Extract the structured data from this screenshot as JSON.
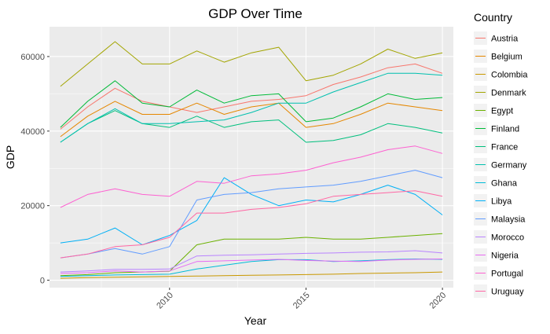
{
  "chart_data": {
    "type": "line",
    "title": "GDP Over Time",
    "xlabel": "Year",
    "ylabel": "GDP",
    "xlim": [
      2005.6,
      2020.4
    ],
    "ylim": [
      -2000,
      68000
    ],
    "x_ticks": [
      2010,
      2015,
      2020
    ],
    "x_tick_labels": [
      "2010",
      "2015",
      "2020"
    ],
    "y_ticks": [
      0,
      20000,
      40000,
      60000
    ],
    "y_tick_labels": [
      "0",
      "20000",
      "40000",
      "60000"
    ],
    "grid": true,
    "legend_title": "Country",
    "legend_position": "right",
    "x": [
      2006,
      2007,
      2008,
      2009,
      2010,
      2011,
      2012,
      2013,
      2014,
      2015,
      2016,
      2017,
      2018,
      2019,
      2020
    ],
    "series": [
      {
        "name": "Austria",
        "color": "#F8766D",
        "values": [
          40500,
          46500,
          51500,
          48000,
          46500,
          45000,
          46500,
          48000,
          48500,
          49500,
          52500,
          54500,
          57000,
          58000,
          55500
        ]
      },
      {
        "name": "Belgium",
        "color": "#E58700",
        "values": [
          38500,
          44000,
          48000,
          44500,
          44500,
          47500,
          44500,
          46500,
          47500,
          41000,
          42000,
          44500,
          47500,
          46500,
          45500
        ]
      },
      {
        "name": "Colombia",
        "color": "#C99800",
        "values": [
          500,
          700,
          800,
          900,
          1000,
          1100,
          1200,
          1300,
          1400,
          1500,
          1600,
          1800,
          1900,
          2000,
          2200
        ]
      },
      {
        "name": "Denmark",
        "color": "#A3A500",
        "values": [
          52000,
          58000,
          64000,
          58000,
          58000,
          61500,
          58500,
          61000,
          62500,
          53500,
          55000,
          58000,
          62000,
          59500,
          61000
        ]
      },
      {
        "name": "Egypt",
        "color": "#6BB100",
        "values": [
          1200,
          1500,
          2000,
          2200,
          2400,
          9500,
          11000,
          11000,
          11000,
          11500,
          11000,
          11000,
          11500,
          12000,
          12500
        ]
      },
      {
        "name": "Finland",
        "color": "#00BA38",
        "values": [
          41000,
          48000,
          53500,
          47500,
          46500,
          51000,
          47500,
          49500,
          50000,
          42500,
          43500,
          46500,
          50000,
          48500,
          49000
        ]
      },
      {
        "name": "France",
        "color": "#00BF7D",
        "values": [
          37000,
          42000,
          45500,
          42000,
          41000,
          44000,
          41000,
          42500,
          43000,
          37000,
          37500,
          39000,
          42000,
          41000,
          39500
        ]
      },
      {
        "name": "Germany",
        "color": "#00C0AF",
        "values": [
          37000,
          42000,
          46000,
          42000,
          42000,
          42500,
          43000,
          45000,
          47500,
          47500,
          50500,
          53000,
          55500,
          55500,
          55000
        ]
      },
      {
        "name": "Ghana",
        "color": "#00BCD8",
        "values": [
          1000,
          1200,
          1400,
          1500,
          1600,
          3000,
          4000,
          5000,
          5500,
          5500,
          5000,
          5200,
          5500,
          5700,
          5600
        ]
      },
      {
        "name": "Libya",
        "color": "#00B0F6",
        "values": [
          10000,
          11000,
          14000,
          9500,
          12000,
          16000,
          27500,
          23000,
          20000,
          21500,
          21000,
          23000,
          25500,
          23000,
          17500
        ]
      },
      {
        "name": "Malaysia",
        "color": "#619CFF",
        "values": [
          6000,
          7000,
          8500,
          7000,
          9000,
          21500,
          23000,
          23500,
          24500,
          25000,
          25500,
          26500,
          28000,
          29500,
          27500
        ]
      },
      {
        "name": "Morocco",
        "color": "#B983FF",
        "values": [
          2200,
          2500,
          2900,
          2900,
          3000,
          6500,
          6700,
          6800,
          7000,
          7200,
          7300,
          7500,
          7600,
          7900,
          7300
        ]
      },
      {
        "name": "Nigeria",
        "color": "#E76BF3",
        "values": [
          1800,
          2000,
          2500,
          2200,
          2500,
          5000,
          5200,
          5400,
          5600,
          5300,
          5100,
          5000,
          5400,
          5600,
          5700
        ]
      },
      {
        "name": "Portugal",
        "color": "#FD61D1",
        "values": [
          19500,
          23000,
          24500,
          23000,
          22500,
          26500,
          26000,
          28000,
          28500,
          29500,
          31500,
          33000,
          35000,
          36000,
          34000
        ]
      },
      {
        "name": "Uruguay",
        "color": "#FF67A4",
        "values": [
          6000,
          7000,
          9000,
          9500,
          11500,
          18000,
          18000,
          19000,
          19500,
          20500,
          22500,
          23000,
          23500,
          24000,
          22500
        ]
      }
    ]
  }
}
